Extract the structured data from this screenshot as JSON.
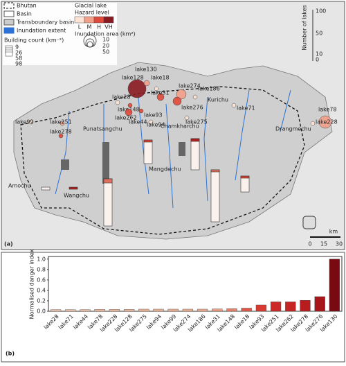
{
  "map": {
    "legend": {
      "items": [
        "Bhutan",
        "Basin",
        "Transboundary basin",
        "Inundation extent"
      ],
      "glacial_lake": "Glacial lake",
      "hazard_level": "Hazard level",
      "hazard_classes": [
        "L",
        "M",
        "H",
        "VH"
      ],
      "inundation_area": "Inundation area (km²)",
      "inundation_ticks": [
        "10",
        "20",
        "50"
      ],
      "building_count": "Building count (km⁻²)",
      "building_ticks": [
        "9",
        "26",
        "58",
        "98"
      ]
    },
    "lakes_axis": {
      "title": "Number of lakes",
      "ticks": [
        "100",
        "50",
        "10",
        "0"
      ]
    },
    "scale": {
      "unit": "km",
      "ticks": [
        "0",
        "15",
        "30"
      ]
    },
    "panel_label": "(a)",
    "basins": [
      "Amochu",
      "Wangchu",
      "Punatsangchu",
      "Mangdechu",
      "Chamkharchu",
      "Kurichu",
      "Drangmechu"
    ],
    "lakes": [
      "lake130",
      "lake128",
      "lake18",
      "lake274",
      "lake186",
      "lake31",
      "lake28",
      "lake148",
      "lake262",
      "lake93",
      "lake44",
      "lake94",
      "lake276",
      "lake275",
      "lake71",
      "lake78",
      "lake228",
      "lake99",
      "lake251",
      "lake278"
    ]
  },
  "chart_data": {
    "type": "bar",
    "panel_label": "(b)",
    "y_label": "Normalised danger index",
    "categories": [
      "lake28",
      "lake71",
      "lake44",
      "lake78",
      "lake228",
      "lake128",
      "lake275",
      "lake94",
      "lake99",
      "lake274",
      "lake186",
      "lake31",
      "lake148",
      "lake18",
      "lake93",
      "lake251",
      "lake262",
      "lake278",
      "lake276",
      "lake130"
    ],
    "values": [
      0.03,
      0.03,
      0.03,
      0.035,
      0.035,
      0.035,
      0.04,
      0.04,
      0.04,
      0.04,
      0.04,
      0.045,
      0.05,
      0.06,
      0.12,
      0.18,
      0.18,
      0.21,
      0.28,
      1.0
    ],
    "colors": [
      "#f4c4a8",
      "#f4c4a8",
      "#f4c2a6",
      "#f3bea2",
      "#f3bea2",
      "#f2bb9e",
      "#f1b699",
      "#f1b699",
      "#f0b294",
      "#f0b294",
      "#efae90",
      "#ec9c80",
      "#e8806a",
      "#e05a48",
      "#d83a30",
      "#cc2a26",
      "#c42422",
      "#b81c1e",
      "#a8151a",
      "#7a0a12"
    ],
    "ylim": [
      0,
      1.05
    ],
    "yticks": [
      {
        "value": 0,
        "label": "0.0"
      },
      {
        "value": 0.2,
        "label": "0.2"
      },
      {
        "value": 0.4,
        "label": "0.4"
      },
      {
        "value": 0.6,
        "label": "0.6"
      },
      {
        "value": 0.8,
        "label": "0.8"
      },
      {
        "value": 1.0,
        "label": "1.0"
      }
    ]
  }
}
